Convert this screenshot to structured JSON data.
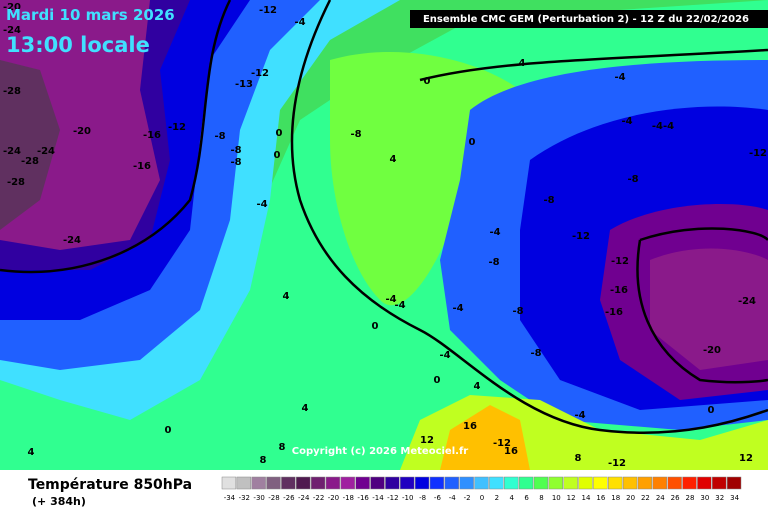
{
  "header": {
    "date": "Mardi 10 mars 2026",
    "time": "13:00 locale",
    "model": "Ensemble CMC GEM  (Perturbation 2)  -  12 Z du 22/02/2026",
    "copyright": "Copyright (c) 2026 Meteociel.fr"
  },
  "footer": {
    "title": "Température 850hPa",
    "lead": "(+ 384h)"
  },
  "scale": {
    "values": [
      -34,
      -32,
      -30,
      -28,
      -26,
      -24,
      -22,
      -20,
      -18,
      -16,
      -14,
      -12,
      -10,
      -8,
      -6,
      -4,
      -2,
      0,
      2,
      4,
      6,
      8,
      10,
      12,
      14,
      16,
      18,
      20,
      22,
      24,
      26,
      28,
      30,
      32,
      34
    ],
    "colors": [
      "#e0e0e0",
      "#c0c0c0",
      "#a080a0",
      "#806080",
      "#603060",
      "#501a50",
      "#702070",
      "#8a1a8a",
      "#a020a0",
      "#700090",
      "#500080",
      "#3000a0",
      "#2000c0",
      "#0000e0",
      "#1030ff",
      "#2060ff",
      "#3090ff",
      "#40c0ff",
      "#40e0ff",
      "#30ffd0",
      "#30ff90",
      "#50ff50",
      "#90ff30",
      "#c0ff20",
      "#e0ff00",
      "#ffff00",
      "#ffe000",
      "#ffc000",
      "#ffa000",
      "#ff8000",
      "#ff5000",
      "#ff2000",
      "#e00000",
      "#c00000",
      "#a00000"
    ]
  },
  "contour_labels": [
    "-20",
    "-12",
    "-4",
    "-24",
    "4",
    "-4",
    "-12",
    "-13",
    "0",
    "-28",
    "-20",
    "-16",
    "-12",
    "-8",
    "0",
    "-8",
    "-4",
    "-4-4",
    "0",
    "-12",
    "-24",
    "-24",
    "-28",
    "-8",
    "-8",
    "0",
    "4",
    "-16",
    "-28",
    "-8",
    "-4",
    "-8",
    "-12",
    "-4",
    "-24",
    "-8",
    "-12",
    "4",
    "-4",
    "-4",
    "-4",
    "-8",
    "-16",
    "-16",
    "-24",
    "0",
    "-20",
    "-4",
    "-8",
    "4",
    "0",
    "4",
    "-4",
    "0",
    "16",
    "12",
    "-12",
    "16",
    "8",
    "-12",
    "12",
    "8",
    "8",
    "4",
    "0"
  ]
}
